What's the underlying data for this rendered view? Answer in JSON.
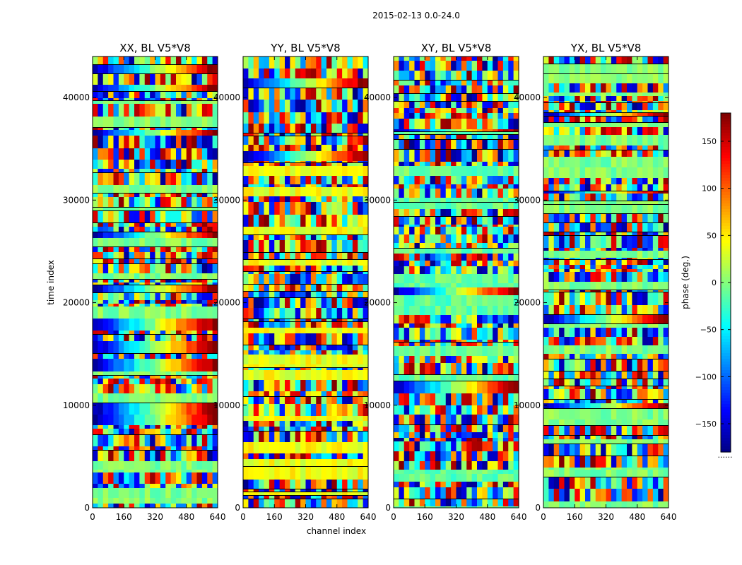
{
  "chart_data": {
    "type": "heatmap",
    "title": "2015-02-13 0.0-24.0",
    "xlabel": "channel index",
    "ylabel": "time index",
    "xlim": [
      0,
      640
    ],
    "ylim": [
      0,
      44000
    ],
    "x_ticks": [
      "0",
      "160",
      "320",
      "480",
      "640"
    ],
    "y_ticks": [
      "0",
      "10000",
      "20000",
      "30000",
      "40000"
    ],
    "x_tick_values": [
      0,
      160,
      320,
      480,
      640
    ],
    "y_tick_values": [
      0,
      10000,
      20000,
      30000,
      40000
    ],
    "panels": [
      {
        "title": "XX, BL V5*V8",
        "mean_phase": 0
      },
      {
        "title": "YY, BL V5*V8",
        "mean_phase": 40
      },
      {
        "title": "XY, BL V5*V8",
        "mean_phase": -10
      },
      {
        "title": "YX, BL V5*V8",
        "mean_phase": 0
      }
    ],
    "colorbar": {
      "label": "phase (deg.)",
      "colormap": "jet",
      "range": [
        -180,
        180
      ],
      "ticks": [
        "150",
        "100",
        "50",
        "0",
        "−50",
        "−100",
        "−150"
      ],
      "tick_values": [
        150,
        100,
        50,
        0,
        -50,
        -100,
        -150
      ],
      "bottom_note": "......"
    }
  }
}
